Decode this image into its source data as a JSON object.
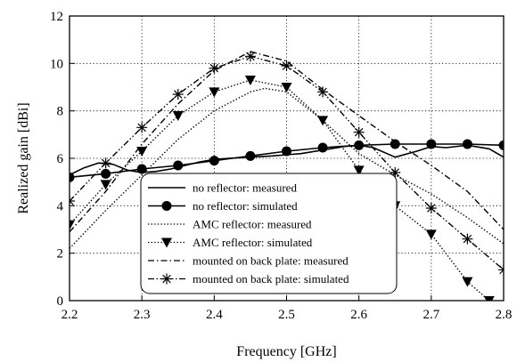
{
  "chart_data": {
    "type": "line",
    "xlabel": "Frequency [GHz]",
    "ylabel": "Realized gain [dBi]",
    "xlim": [
      2.2,
      2.8
    ],
    "ylim": [
      0,
      12
    ],
    "x_ticks": [
      "2.2",
      "2.3",
      "2.4",
      "2.5",
      "2.6",
      "2.7",
      "2.8"
    ],
    "y_ticks": [
      "0",
      "2",
      "4",
      "6",
      "8",
      "10",
      "12"
    ],
    "grid": "dotted",
    "legend_position": "bottom-center",
    "series": [
      {
        "name": "no reflector: measured",
        "style": "solid",
        "marker": "none",
        "x": [
          2.2,
          2.22,
          2.24,
          2.26,
          2.28,
          2.3,
          2.32,
          2.34,
          2.36,
          2.38,
          2.4,
          2.42,
          2.45,
          2.48,
          2.5,
          2.52,
          2.55,
          2.58,
          2.6,
          2.62,
          2.65,
          2.68,
          2.7,
          2.72,
          2.75,
          2.78,
          2.8
        ],
        "y": [
          5.3,
          5.6,
          5.8,
          5.75,
          5.5,
          5.4,
          5.45,
          5.55,
          5.7,
          5.85,
          5.95,
          6.0,
          6.05,
          6.1,
          6.15,
          6.2,
          6.35,
          6.5,
          6.55,
          6.45,
          6.05,
          6.3,
          6.5,
          6.45,
          6.55,
          6.4,
          6.05
        ]
      },
      {
        "name": "no reflector: simulated",
        "style": "solid",
        "marker": "circle",
        "x": [
          2.2,
          2.25,
          2.3,
          2.35,
          2.4,
          2.45,
          2.5,
          2.55,
          2.6,
          2.65,
          2.7,
          2.75,
          2.8
        ],
        "y": [
          5.2,
          5.35,
          5.55,
          5.7,
          5.9,
          6.1,
          6.3,
          6.45,
          6.55,
          6.6,
          6.6,
          6.6,
          6.55
        ]
      },
      {
        "name": "AMC reflector: measured",
        "style": "dotted",
        "marker": "none",
        "x": [
          2.2,
          2.25,
          2.3,
          2.35,
          2.4,
          2.45,
          2.47,
          2.5,
          2.55,
          2.6,
          2.65,
          2.7,
          2.75,
          2.8
        ],
        "y": [
          2.2,
          3.8,
          5.3,
          6.8,
          8.0,
          8.8,
          8.95,
          8.8,
          7.6,
          6.2,
          5.3,
          4.5,
          3.5,
          2.4
        ]
      },
      {
        "name": "AMC reflector: simulated",
        "style": "dotted",
        "marker": "triangle-down",
        "x": [
          2.2,
          2.25,
          2.3,
          2.35,
          2.4,
          2.45,
          2.5,
          2.55,
          2.6,
          2.65,
          2.7,
          2.75,
          2.78
        ],
        "y": [
          3.2,
          4.9,
          6.3,
          7.8,
          8.8,
          9.3,
          9.0,
          7.6,
          5.5,
          4.0,
          2.8,
          0.8,
          0
        ]
      },
      {
        "name": "mounted on back plate: measured",
        "style": "dash-dot",
        "marker": "none",
        "x": [
          2.2,
          2.25,
          2.3,
          2.35,
          2.4,
          2.45,
          2.5,
          2.55,
          2.6,
          2.65,
          2.7,
          2.75,
          2.8
        ],
        "y": [
          2.9,
          4.6,
          6.6,
          8.3,
          9.7,
          10.5,
          10.1,
          8.9,
          7.8,
          6.7,
          5.7,
          4.6,
          3.0
        ]
      },
      {
        "name": "mounted on back plate: simulated",
        "style": "dash-dot-dot",
        "marker": "asterisk",
        "x": [
          2.2,
          2.25,
          2.3,
          2.35,
          2.4,
          2.45,
          2.5,
          2.55,
          2.6,
          2.65,
          2.7,
          2.75,
          2.8
        ],
        "y": [
          4.2,
          5.8,
          7.3,
          8.7,
          9.8,
          10.3,
          9.9,
          8.8,
          7.1,
          5.4,
          3.9,
          2.6,
          1.3
        ]
      }
    ]
  }
}
